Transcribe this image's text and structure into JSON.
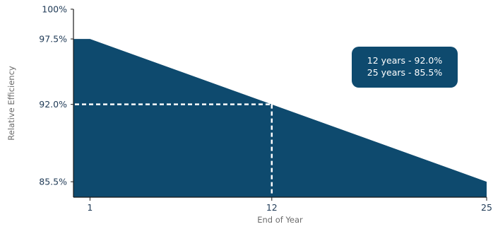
{
  "chart_data": {
    "type": "area",
    "xlabel": "End of Year",
    "ylabel": "Relative Efficiency",
    "x": [
      1,
      25
    ],
    "y": [
      97.5,
      85.5
    ],
    "flat_start": [
      0,
      97.5
    ],
    "xlim": [
      0,
      25
    ],
    "ylim": [
      84.2,
      100
    ],
    "xticks": [
      1,
      12,
      25
    ],
    "xtick_labels": [
      "1",
      "12",
      "25"
    ],
    "yticks": [
      85.5,
      92.0,
      97.5,
      100
    ],
    "ytick_labels": [
      "85.5%",
      "92.0%",
      "97.5%",
      "100%"
    ],
    "highlight_point": {
      "x": 12,
      "y": 92.0
    },
    "annotation": [
      "12 years - 92.0%",
      "25 years - 85.5%"
    ],
    "grid": false,
    "colors": {
      "fill": "#0e4a6e",
      "axis": "#1a1a1a",
      "tick_text": "#1f3a56",
      "title_text": "#6b6b6b",
      "callout_bg": "#0e4a6e",
      "callout_text": "#ffffff",
      "guide": "#ffffff"
    }
  }
}
